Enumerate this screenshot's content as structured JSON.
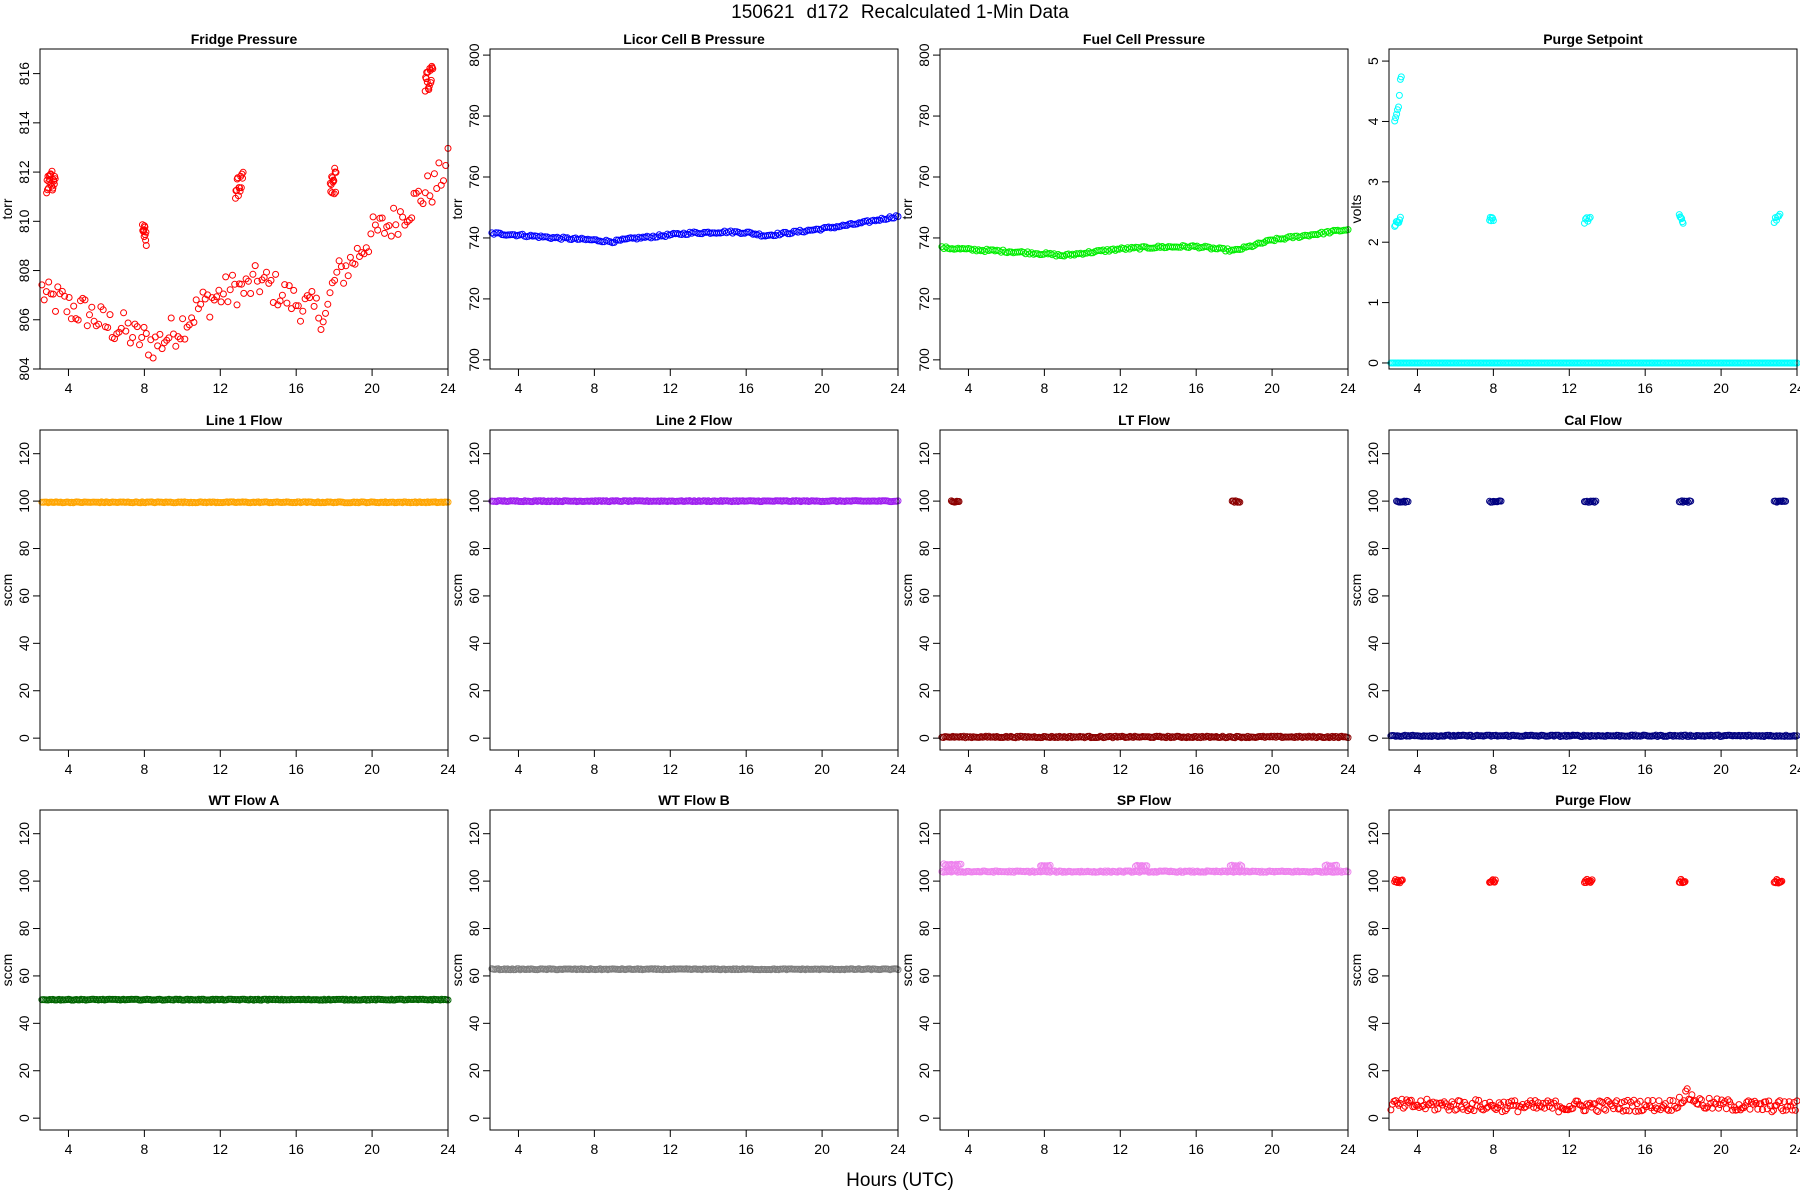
{
  "header": {
    "date": "150621",
    "day": "d172",
    "label": "Recalculated 1-Min Data"
  },
  "x_axis_label": "Hours (UTC)",
  "chart_data": [
    {
      "type": "scatter",
      "title": "Fridge Pressure",
      "ylabel": "torr",
      "color": "#ff0000",
      "xlim": [
        2.5,
        24
      ],
      "ylim": [
        804,
        817
      ],
      "xticks": [
        4,
        8,
        12,
        16,
        20,
        24
      ],
      "yticks": [
        804,
        806,
        808,
        810,
        812,
        814,
        816
      ],
      "series": [
        {
          "trend": [
            [
              2.6,
              807.2
            ],
            [
              3,
              806.8
            ],
            [
              3.5,
              806.8
            ],
            [
              4,
              806.5
            ],
            [
              5,
              806.3
            ],
            [
              6,
              805.8
            ],
            [
              7,
              805.6
            ],
            [
              7.5,
              805.3
            ],
            [
              8,
              805.2
            ],
            [
              8.5,
              805
            ],
            [
              9,
              805.2
            ],
            [
              10,
              805.8
            ],
            [
              11,
              806.6
            ],
            [
              12,
              807
            ],
            [
              12.8,
              807.3
            ],
            [
              13.3,
              807.2
            ],
            [
              14,
              807.6
            ],
            [
              15,
              807.2
            ],
            [
              16,
              806.7
            ],
            [
              17,
              806.4
            ],
            [
              17.6,
              806.2
            ],
            [
              18,
              807.6
            ],
            [
              18.5,
              808
            ],
            [
              19,
              808.4
            ],
            [
              20,
              809.5
            ],
            [
              21,
              809.9
            ],
            [
              22,
              810.6
            ],
            [
              22.8,
              811.2
            ],
            [
              23.3,
              811.4
            ],
            [
              23.6,
              811.8
            ],
            [
              24,
              812.3
            ]
          ],
          "spread": 0.7,
          "density": 180
        },
        {
          "trend": [
            [
              2.85,
              811.4
            ],
            [
              3.1,
              811.8
            ],
            [
              3.3,
              811.6
            ]
          ],
          "spread": 0.5,
          "density": 20
        },
        {
          "trend": [
            [
              7.9,
              809.8
            ],
            [
              8.1,
              809.2
            ]
          ],
          "spread": 0.4,
          "density": 12
        },
        {
          "trend": [
            [
              12.8,
              811.3
            ],
            [
              13.2,
              811.6
            ]
          ],
          "spread": 0.4,
          "density": 14
        },
        {
          "trend": [
            [
              17.8,
              811.2
            ],
            [
              18.1,
              811.8
            ]
          ],
          "spread": 0.6,
          "density": 14
        },
        {
          "trend": [
            [
              22.8,
              815.5
            ],
            [
              23.2,
              816
            ]
          ],
          "spread": 0.5,
          "density": 16
        }
      ]
    },
    {
      "type": "scatter",
      "title": "Licor Cell B Pressure",
      "ylabel": "torr",
      "color": "#0000ff",
      "xlim": [
        2.5,
        24
      ],
      "ylim": [
        697,
        802
      ],
      "xticks": [
        4,
        8,
        12,
        16,
        20,
        24
      ],
      "yticks": [
        700,
        720,
        740,
        760,
        780,
        800
      ],
      "series": [
        {
          "trend": [
            [
              2.6,
              741.5
            ],
            [
              4,
              741
            ],
            [
              6,
              740
            ],
            [
              8,
              739.3
            ],
            [
              9,
              738.8
            ],
            [
              10,
              739.8
            ],
            [
              12,
              741
            ],
            [
              13,
              741.6
            ],
            [
              15,
              742
            ],
            [
              16,
              741.8
            ],
            [
              17,
              740.8
            ],
            [
              18,
              741.5
            ],
            [
              20,
              743
            ],
            [
              22,
              744.8
            ],
            [
              24,
              747.2
            ]
          ],
          "spread": 0.4,
          "density": 200
        }
      ]
    },
    {
      "type": "scatter",
      "title": "Fuel Cell Pressure",
      "ylabel": "torr",
      "color": "#00ee00",
      "xlim": [
        2.5,
        24
      ],
      "ylim": [
        697,
        802
      ],
      "xticks": [
        4,
        8,
        12,
        16,
        20,
        24
      ],
      "yticks": [
        700,
        720,
        740,
        760,
        780,
        800
      ],
      "series": [
        {
          "trend": [
            [
              2.6,
              736.8
            ],
            [
              4,
              736.2
            ],
            [
              6,
              735.6
            ],
            [
              8,
              734.8
            ],
            [
              9,
              734.2
            ],
            [
              10,
              735
            ],
            [
              12,
              736.4
            ],
            [
              14,
              737
            ],
            [
              16,
              737.2
            ],
            [
              17,
              736.5
            ],
            [
              18,
              735.8
            ],
            [
              19,
              737.5
            ],
            [
              20,
              739.3
            ],
            [
              22,
              741
            ],
            [
              24,
              742.8
            ]
          ],
          "spread": 0.4,
          "density": 200
        }
      ]
    },
    {
      "type": "scatter",
      "title": "Purge Setpoint",
      "ylabel": "volts",
      "color": "#00ffff",
      "xlim": [
        2.5,
        24
      ],
      "ylim": [
        -0.1,
        5.2
      ],
      "xticks": [
        4,
        8,
        12,
        16,
        20,
        24
      ],
      "yticks": [
        0,
        1,
        2,
        3,
        4,
        5
      ],
      "series": [
        {
          "trend": [
            [
              2.6,
              0
            ],
            [
              24,
              0
            ]
          ],
          "spread": 0,
          "density": 260
        },
        {
          "trend": [
            [
              2.8,
              4.0
            ],
            [
              3.0,
              4.2
            ],
            [
              3.1,
              4.7
            ],
            [
              3.15,
              4.75
            ]
          ],
          "spread": 0.05,
          "density": 8
        },
        {
          "trend": [
            [
              2.8,
              2.25
            ],
            [
              3.1,
              2.4
            ]
          ],
          "spread": 0.05,
          "density": 8
        },
        {
          "trend": [
            [
              7.8,
              2.4
            ],
            [
              8.0,
              2.35
            ]
          ],
          "spread": 0.04,
          "density": 6
        },
        {
          "trend": [
            [
              12.8,
              2.35
            ],
            [
              13.1,
              2.4
            ]
          ],
          "spread": 0.04,
          "density": 6
        },
        {
          "trend": [
            [
              17.8,
              2.45
            ],
            [
              18.0,
              2.35
            ]
          ],
          "spread": 0.04,
          "density": 6
        },
        {
          "trend": [
            [
              22.8,
              2.35
            ],
            [
              23.1,
              2.45
            ]
          ],
          "spread": 0.04,
          "density": 6
        }
      ]
    },
    {
      "type": "scatter",
      "title": "Line 1 Flow",
      "ylabel": "sccm",
      "color": "#ffa500",
      "xlim": [
        2.5,
        24
      ],
      "ylim": [
        -5,
        130
      ],
      "xticks": [
        4,
        8,
        12,
        16,
        20,
        24
      ],
      "yticks": [
        0,
        20,
        40,
        60,
        80,
        100,
        120
      ],
      "series": [
        {
          "trend": [
            [
              2.6,
              99.5
            ],
            [
              24,
              99.5
            ]
          ],
          "spread": 0.2,
          "density": 260
        }
      ]
    },
    {
      "type": "scatter",
      "title": "Line 2 Flow",
      "ylabel": "sccm",
      "color": "#a020f0",
      "xlim": [
        2.5,
        24
      ],
      "ylim": [
        -5,
        130
      ],
      "xticks": [
        4,
        8,
        12,
        16,
        20,
        24
      ],
      "yticks": [
        0,
        20,
        40,
        60,
        80,
        100,
        120
      ],
      "series": [
        {
          "trend": [
            [
              2.6,
              100
            ],
            [
              24,
              100
            ]
          ],
          "spread": 0.2,
          "density": 260
        }
      ]
    },
    {
      "type": "scatter",
      "title": "LT Flow",
      "ylabel": "sccm",
      "color": "#8b0000",
      "xlim": [
        2.5,
        24
      ],
      "ylim": [
        -5,
        130
      ],
      "xticks": [
        4,
        8,
        12,
        16,
        20,
        24
      ],
      "yticks": [
        0,
        20,
        40,
        60,
        80,
        100,
        120
      ],
      "series": [
        {
          "trend": [
            [
              2.6,
              0.5
            ],
            [
              24,
              0.5
            ]
          ],
          "spread": 0.3,
          "density": 260
        },
        {
          "trend": [
            [
              3.1,
              99.8
            ],
            [
              3.5,
              99.8
            ]
          ],
          "spread": 0.3,
          "density": 8
        },
        {
          "trend": [
            [
              17.9,
              99.8
            ],
            [
              18.3,
              99.8
            ]
          ],
          "spread": 0.3,
          "density": 8
        }
      ]
    },
    {
      "type": "scatter",
      "title": "Cal Flow",
      "ylabel": "sccm",
      "color": "#000080",
      "xlim": [
        2.5,
        24
      ],
      "ylim": [
        -5,
        130
      ],
      "xticks": [
        4,
        8,
        12,
        16,
        20,
        24
      ],
      "yticks": [
        0,
        20,
        40,
        60,
        80,
        100,
        120
      ],
      "series": [
        {
          "trend": [
            [
              2.6,
              1
            ],
            [
              24,
              1
            ]
          ],
          "spread": 0.3,
          "density": 260
        },
        {
          "trend": [
            [
              2.9,
              99.8
            ],
            [
              3.5,
              99.8
            ]
          ],
          "spread": 0.3,
          "density": 10
        },
        {
          "trend": [
            [
              7.8,
              99.8
            ],
            [
              8.4,
              99.8
            ]
          ],
          "spread": 0.3,
          "density": 10
        },
        {
          "trend": [
            [
              12.8,
              99.8
            ],
            [
              13.4,
              99.8
            ]
          ],
          "spread": 0.3,
          "density": 10
        },
        {
          "trend": [
            [
              17.8,
              99.8
            ],
            [
              18.4,
              99.8
            ]
          ],
          "spread": 0.3,
          "density": 10
        },
        {
          "trend": [
            [
              22.8,
              99.8
            ],
            [
              23.4,
              99.8
            ]
          ],
          "spread": 0.3,
          "density": 10
        }
      ]
    },
    {
      "type": "scatter",
      "title": "WT Flow A",
      "ylabel": "sccm",
      "color": "#006400",
      "xlim": [
        2.5,
        24
      ],
      "ylim": [
        -5,
        130
      ],
      "xticks": [
        4,
        8,
        12,
        16,
        20,
        24
      ],
      "yticks": [
        0,
        20,
        40,
        60,
        80,
        100,
        120
      ],
      "series": [
        {
          "trend": [
            [
              2.6,
              50
            ],
            [
              24,
              50
            ]
          ],
          "spread": 0.2,
          "density": 260
        }
      ]
    },
    {
      "type": "scatter",
      "title": "WT Flow B",
      "ylabel": "sccm",
      "color": "#7f7f7f",
      "xlim": [
        2.5,
        24
      ],
      "ylim": [
        -5,
        130
      ],
      "xticks": [
        4,
        8,
        12,
        16,
        20,
        24
      ],
      "yticks": [
        0,
        20,
        40,
        60,
        80,
        100,
        120
      ],
      "series": [
        {
          "trend": [
            [
              2.6,
              62.8
            ],
            [
              24,
              62.8
            ]
          ],
          "spread": 0.2,
          "density": 260
        }
      ]
    },
    {
      "type": "scatter",
      "title": "SP Flow",
      "ylabel": "sccm",
      "color": "#ee82ee",
      "xlim": [
        2.5,
        24
      ],
      "ylim": [
        -5,
        130
      ],
      "xticks": [
        4,
        8,
        12,
        16,
        20,
        24
      ],
      "yticks": [
        0,
        20,
        40,
        60,
        80,
        100,
        120
      ],
      "series": [
        {
          "trend": [
            [
              2.6,
              104
            ],
            [
              24,
              104
            ]
          ],
          "spread": 0.3,
          "density": 260
        },
        {
          "trend": [
            [
              2.7,
              107
            ],
            [
              3.6,
              107
            ]
          ],
          "spread": 0.3,
          "density": 12
        },
        {
          "trend": [
            [
              7.8,
              106.5
            ],
            [
              8.3,
              106.5
            ]
          ],
          "spread": 0.3,
          "density": 8
        },
        {
          "trend": [
            [
              12.8,
              106.5
            ],
            [
              13.4,
              106.5
            ]
          ],
          "spread": 0.3,
          "density": 8
        },
        {
          "trend": [
            [
              17.8,
              106.5
            ],
            [
              18.4,
              106.5
            ]
          ],
          "spread": 0.3,
          "density": 8
        },
        {
          "trend": [
            [
              22.8,
              106.5
            ],
            [
              23.4,
              106.5
            ]
          ],
          "spread": 0.3,
          "density": 8
        }
      ]
    },
    {
      "type": "scatter",
      "title": "Purge Flow",
      "ylabel": "sccm",
      "color": "#ff0000",
      "xlim": [
        2.5,
        24
      ],
      "ylim": [
        -5,
        130
      ],
      "xticks": [
        4,
        8,
        12,
        16,
        20,
        24
      ],
      "yticks": [
        0,
        20,
        40,
        60,
        80,
        100,
        120
      ],
      "series": [
        {
          "trend": [
            [
              2.6,
              5.5
            ],
            [
              6,
              5.5
            ],
            [
              10,
              5
            ],
            [
              14,
              5.2
            ],
            [
              17.5,
              5.5
            ],
            [
              18.2,
              10
            ],
            [
              19,
              6
            ],
            [
              22,
              5
            ],
            [
              24,
              5
            ]
          ],
          "spread": 2.5,
          "density": 260
        },
        {
          "trend": [
            [
              2.8,
              100
            ],
            [
              3.2,
              100
            ]
          ],
          "spread": 0.8,
          "density": 10
        },
        {
          "trend": [
            [
              7.8,
              100
            ],
            [
              8.1,
              100
            ]
          ],
          "spread": 0.8,
          "density": 8
        },
        {
          "trend": [
            [
              12.8,
              100
            ],
            [
              13.2,
              100
            ]
          ],
          "spread": 0.8,
          "density": 10
        },
        {
          "trend": [
            [
              17.8,
              100
            ],
            [
              18.1,
              100
            ]
          ],
          "spread": 0.8,
          "density": 8
        },
        {
          "trend": [
            [
              22.8,
              100
            ],
            [
              23.2,
              100
            ]
          ],
          "spread": 0.8,
          "density": 10
        }
      ]
    }
  ]
}
